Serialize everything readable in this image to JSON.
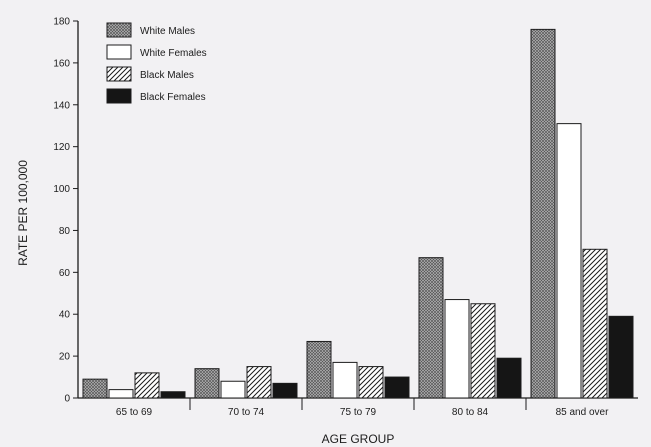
{
  "chart_data": {
    "type": "bar",
    "title": "",
    "xlabel": "AGE GROUP",
    "ylabel": "RATE PER 100,000",
    "ylim": [
      0,
      180
    ],
    "yticks": [
      0,
      20,
      40,
      60,
      80,
      100,
      120,
      140,
      160,
      180
    ],
    "categories": [
      "65 to 69",
      "70 to 74",
      "75 to 79",
      "80 to 84",
      "85 and over"
    ],
    "series": [
      {
        "name": "White Males",
        "pattern": "crosshatch",
        "values": [
          9,
          14,
          27,
          67,
          176
        ]
      },
      {
        "name": "White Females",
        "pattern": "white",
        "values": [
          4,
          8,
          17,
          47,
          131
        ]
      },
      {
        "name": "Black Males",
        "pattern": "diagonal",
        "values": [
          12,
          15,
          15,
          45,
          71
        ]
      },
      {
        "name": "Black Females",
        "pattern": "black",
        "values": [
          3,
          7,
          10,
          19,
          39
        ]
      }
    ],
    "legend_position": "top-left",
    "grid": false,
    "colors": {
      "ink": "#1c1c1c",
      "background": "#f2f1f3"
    }
  }
}
